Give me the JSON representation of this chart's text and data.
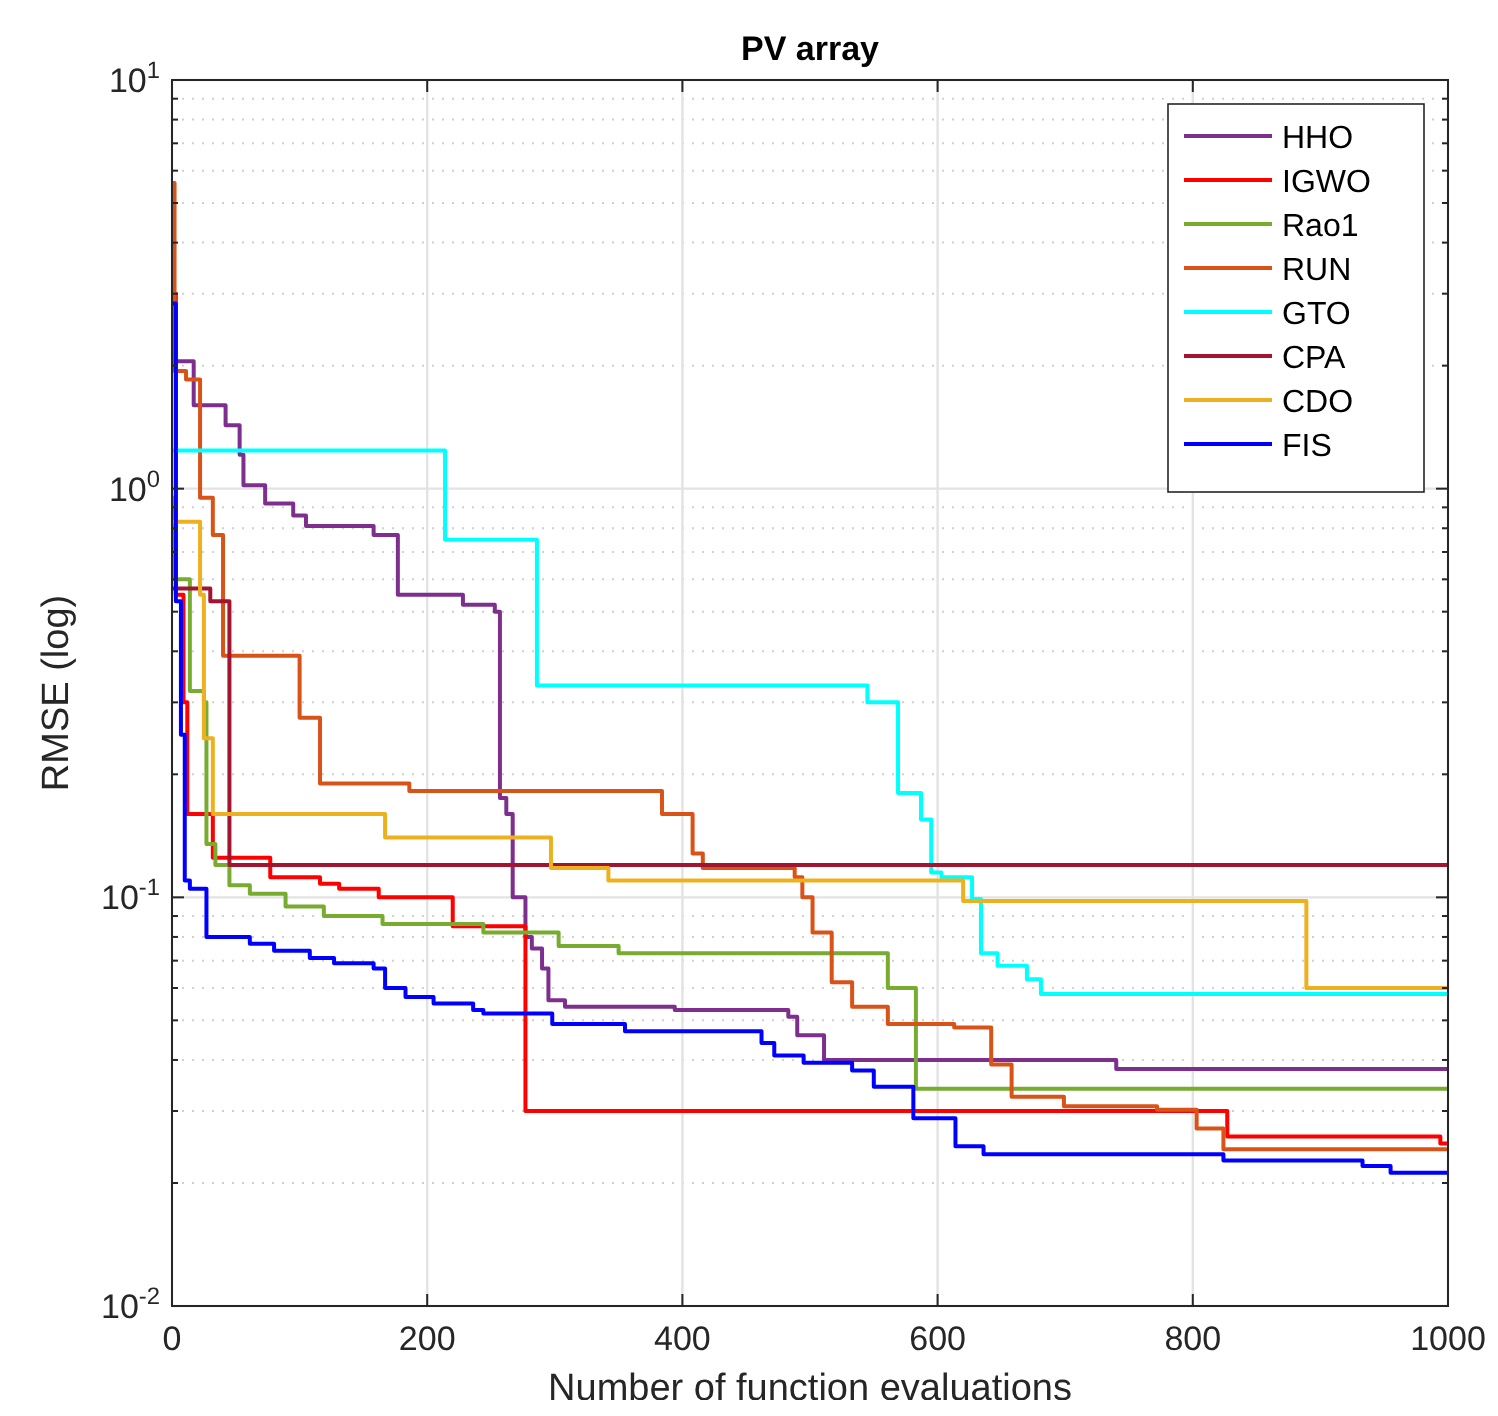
{
  "chart_data": {
    "type": "step",
    "title": "PV array",
    "xlabel": "Number of function evaluations",
    "ylabel": "RMSE (log)",
    "log": "y",
    "grid": true,
    "legend": "top right",
    "line_style": "solid",
    "xlim": [
      0,
      1000
    ],
    "xticks": [
      0,
      200,
      400,
      600,
      800,
      1000
    ],
    "ylim": [
      0.01,
      10
    ],
    "yticks": [
      {
        "value": 0.01,
        "label": "10$^{-2}$"
      },
      {
        "value": 0.1,
        "label": "10$^{-1}$"
      },
      {
        "value": 1,
        "label": "10$^{0}$"
      },
      {
        "value": 10,
        "label": "10$^{1}$"
      }
    ],
    "series": [
      {
        "name": "HHO",
        "color": "#7e2f8e",
        "x": [
          0,
          17,
          42,
          53,
          56,
          73,
          95,
          105,
          158,
          177,
          228,
          253,
          257,
          262,
          267,
          277,
          282,
          290,
          295,
          308,
          394,
          483,
          490,
          511,
          740,
          1000
        ],
        "values": [
          2.05,
          1.6,
          1.43,
          1.21,
          1.02,
          0.92,
          0.86,
          0.81,
          0.77,
          0.55,
          0.52,
          0.5,
          0.175,
          0.16,
          0.1,
          0.08,
          0.075,
          0.067,
          0.056,
          0.054,
          0.053,
          0.051,
          0.046,
          0.04,
          0.038,
          0.038
        ]
      },
      {
        "name": "IGWO",
        "color": "#ff0000",
        "x": [
          0,
          3,
          9,
          12,
          32,
          77,
          116,
          131,
          162,
          220,
          277,
          827,
          994,
          1000
        ],
        "values": [
          3.0,
          0.55,
          0.3,
          0.16,
          0.125,
          0.112,
          0.108,
          0.105,
          0.1,
          0.085,
          0.03,
          0.026,
          0.025,
          0.025
        ]
      },
      {
        "name": "Rao1",
        "color": "#77ac30",
        "x": [
          0,
          2,
          14,
          25,
          27,
          34,
          45,
          61,
          89,
          119,
          165,
          244,
          303,
          350,
          561,
          583,
          1000
        ],
        "values": [
          0.95,
          0.6,
          0.32,
          0.3,
          0.135,
          0.12,
          0.107,
          0.102,
          0.095,
          0.09,
          0.086,
          0.082,
          0.076,
          0.073,
          0.06,
          0.034,
          0.034
        ]
      },
      {
        "name": "RUN",
        "color": "#d95319",
        "x": [
          0,
          2,
          11,
          22,
          32,
          40,
          100,
          116,
          186,
          384,
          408,
          416,
          488,
          494,
          502,
          517,
          533,
          561,
          613,
          642,
          658,
          699,
          772,
          803,
          824,
          1000
        ],
        "values": [
          5.6,
          1.94,
          1.85,
          0.95,
          0.77,
          0.39,
          0.275,
          0.19,
          0.182,
          0.16,
          0.128,
          0.118,
          0.112,
          0.1,
          0.082,
          0.062,
          0.054,
          0.049,
          0.048,
          0.039,
          0.0325,
          0.0308,
          0.0302,
          0.0272,
          0.0242,
          0.0242
        ]
      },
      {
        "name": "GTO",
        "color": "#00ffff",
        "x": [
          0,
          214,
          286,
          545,
          569,
          587,
          595,
          603,
          627,
          634,
          647,
          670,
          681,
          1000
        ],
        "values": [
          1.24,
          0.75,
          0.33,
          0.3,
          0.18,
          0.155,
          0.115,
          0.112,
          0.099,
          0.073,
          0.068,
          0.063,
          0.058,
          0.058
        ]
      },
      {
        "name": "CPA",
        "color": "#a2142f",
        "x": [
          0,
          30,
          45,
          1000
        ],
        "values": [
          0.57,
          0.53,
          0.12,
          0.12
        ]
      },
      {
        "name": "CDO",
        "color": "#edb120",
        "x": [
          0,
          22,
          25,
          32,
          167,
          297,
          342,
          620,
          889,
          1000
        ],
        "values": [
          0.83,
          0.55,
          0.245,
          0.16,
          0.14,
          0.118,
          0.11,
          0.098,
          0.06,
          0.06
        ]
      },
      {
        "name": "FIS",
        "color": "#0000ff",
        "x": [
          0,
          3,
          7,
          10,
          14,
          27,
          61,
          80,
          108,
          127,
          158,
          167,
          183,
          205,
          236,
          244,
          298,
          355,
          462,
          472,
          495,
          533,
          550,
          581,
          614,
          636,
          824,
          933,
          955,
          1000
        ],
        "values": [
          2.84,
          0.53,
          0.25,
          0.11,
          0.105,
          0.08,
          0.077,
          0.074,
          0.071,
          0.069,
          0.067,
          0.06,
          0.057,
          0.055,
          0.053,
          0.052,
          0.049,
          0.047,
          0.044,
          0.041,
          0.0394,
          0.0377,
          0.0344,
          0.0288,
          0.0246,
          0.0235,
          0.0227,
          0.022,
          0.0212,
          0.0212
        ]
      }
    ]
  }
}
